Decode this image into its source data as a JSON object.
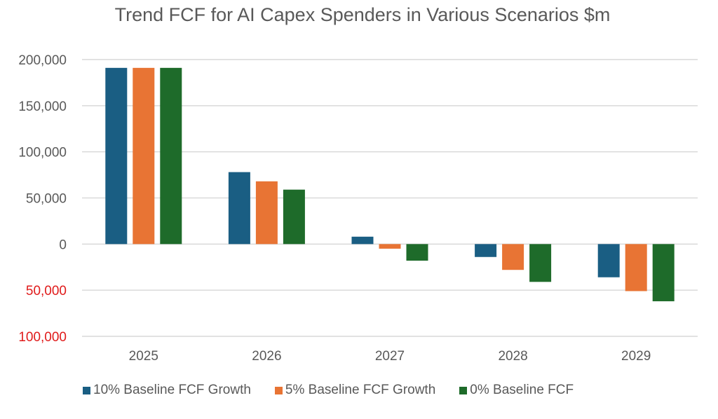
{
  "chart_data": {
    "type": "bar",
    "title": "Trend FCF for AI Capex Spenders in Various Scenarios $m",
    "xlabel": "",
    "ylabel": "",
    "categories": [
      "2025",
      "2026",
      "2027",
      "2028",
      "2029"
    ],
    "series": [
      {
        "name": "10% Baseline FCF Growth",
        "color": "#1a5e83",
        "values": [
          191000,
          78000,
          8000,
          -14000,
          -36000
        ]
      },
      {
        "name": "5% Baseline FCF Growth",
        "color": "#e87434",
        "values": [
          191000,
          68000,
          -5000,
          -28000,
          -51000
        ]
      },
      {
        "name": "0% Baseline FCF",
        "color": "#1e6b2a",
        "values": [
          191000,
          59000,
          -18000,
          -41000,
          -62000
        ]
      }
    ],
    "ylim": [
      -100000,
      200000
    ],
    "yticks": [
      {
        "value": 200000,
        "label": "200,000",
        "negative_color": false
      },
      {
        "value": 150000,
        "label": "150,000",
        "negative_color": false
      },
      {
        "value": 100000,
        "label": "100,000",
        "negative_color": false
      },
      {
        "value": 50000,
        "label": "50,000",
        "negative_color": false
      },
      {
        "value": 0,
        "label": "0",
        "negative_color": false
      },
      {
        "value": -50000,
        "label": "50,000",
        "negative_color": true
      },
      {
        "value": -100000,
        "label": "100,000",
        "negative_color": true
      }
    ],
    "negative_label_color": "#e01b1b",
    "grid": true,
    "legend_position": "bottom"
  }
}
